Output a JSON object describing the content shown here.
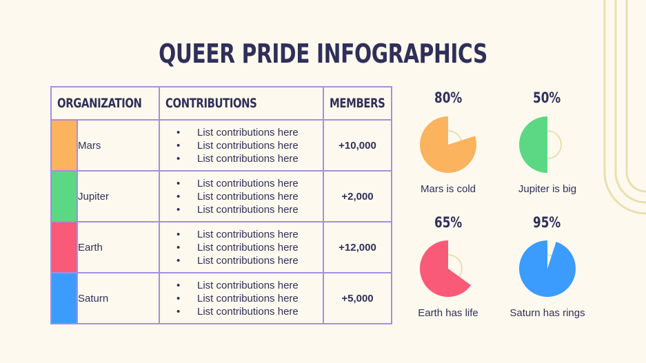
{
  "title": "QUEER PRIDE INFOGRAPHICS",
  "table": {
    "headers": [
      "ORGANIZATION",
      "CONTRIBUTIONS",
      "MEMBERS"
    ],
    "rows": [
      {
        "name": "Mars",
        "color": "#fbb35e",
        "contributions": [
          "List contributions here",
          "List contributions here",
          "List contributions here"
        ],
        "members": "+10,000"
      },
      {
        "name": "Jupiter",
        "color": "#5cd784",
        "contributions": [
          "List contributions here",
          "List contributions here",
          "List contributions here"
        ],
        "members": "+2,000"
      },
      {
        "name": "Earth",
        "color": "#f85a77",
        "contributions": [
          "List contributions here",
          "List contributions here",
          "List contributions here"
        ],
        "members": "+12,000"
      },
      {
        "name": "Saturn",
        "color": "#3c9cfd",
        "contributions": [
          "List contributions here",
          "List contributions here",
          "List contributions here"
        ],
        "members": "+5,000"
      }
    ]
  },
  "charts": [
    {
      "percent_label": "80%",
      "value": 80,
      "caption": "Mars is cold",
      "color": "#fbb35e"
    },
    {
      "percent_label": "50%",
      "value": 50,
      "caption": "Jupiter is big",
      "color": "#5cd784"
    },
    {
      "percent_label": "65%",
      "value": 65,
      "caption": "Earth has life",
      "color": "#f85a77"
    },
    {
      "percent_label": "95%",
      "value": 95,
      "caption": "Saturn has rings",
      "color": "#3c9cfd"
    }
  ],
  "colors": {
    "background": "#fdf9ee",
    "text": "#2f2f5a",
    "table_border": "#a58ee0",
    "decoration": "#e9dfb0"
  }
}
